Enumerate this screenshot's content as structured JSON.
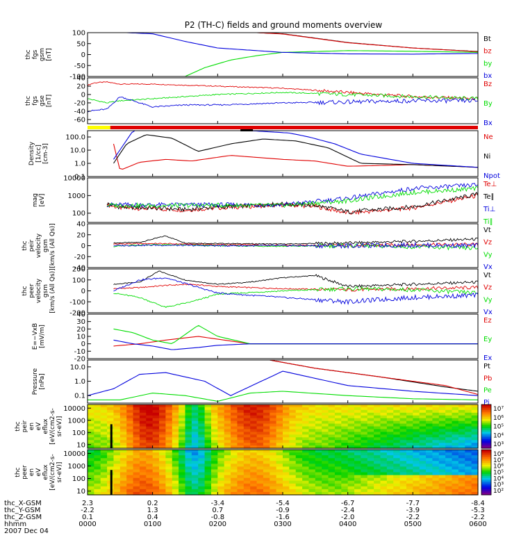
{
  "title": "P2 (TH-C) fields and ground moments overview",
  "colors": {
    "black": "#000000",
    "red": "#e00000",
    "green": "#00dd00",
    "blue": "#0000dd",
    "yellow": "#ffff00"
  },
  "chart_data": [
    {
      "id": "fgs-gsm",
      "type": "line",
      "ylabel": [
        "thc",
        "fgs",
        "gsm",
        "[nT]"
      ],
      "ylim": [
        -100,
        100
      ],
      "yticks": [
        "100",
        "50",
        "0",
        "-50",
        "-100"
      ],
      "series": [
        {
          "name": "Bt",
          "color": "#000000",
          "x": [
            2.6,
            3,
            4,
            5,
            6
          ],
          "y": [
            100,
            95,
            55,
            30,
            14
          ]
        },
        {
          "name": "bz",
          "color": "#e00000",
          "x": [
            2.6,
            3,
            4,
            5,
            6
          ],
          "y": [
            100,
            94,
            54,
            30,
            13
          ]
        },
        {
          "name": "by",
          "color": "#00dd00",
          "x": [
            1.5,
            1.8,
            2.2,
            2.6,
            3,
            4,
            5,
            6
          ],
          "y": [
            -100,
            -60,
            -25,
            -5,
            10,
            18,
            15,
            10
          ]
        },
        {
          "name": "bx",
          "color": "#0000dd",
          "x": [
            0.6,
            1.0,
            1.5,
            2,
            3,
            4,
            5,
            6
          ],
          "y": [
            100,
            95,
            60,
            30,
            10,
            3,
            2,
            5
          ]
        }
      ]
    },
    {
      "id": "fgs-gse",
      "type": "line",
      "ylabel": [
        "thc",
        "fgs",
        "gse",
        "[nT]"
      ],
      "ylim": [
        -70,
        40
      ],
      "yticks": [
        "40",
        "20",
        "0",
        "-20",
        "-40",
        "-60"
      ],
      "series": [
        {
          "name": "Bz",
          "color": "#e00000",
          "x": [
            0,
            0.1,
            0.3,
            0.5,
            1,
            2,
            3,
            4,
            5,
            6
          ],
          "y": [
            22,
            28,
            30,
            25,
            25,
            20,
            15,
            5,
            -5,
            -10
          ]
        },
        {
          "name": "By",
          "color": "#00dd00",
          "x": [
            0,
            0.3,
            0.5,
            1,
            1.5,
            2,
            3,
            4,
            5,
            6
          ],
          "y": [
            -10,
            -20,
            -15,
            -10,
            -5,
            0,
            5,
            0,
            -5,
            -10
          ]
        },
        {
          "name": "Bx",
          "color": "#0000dd",
          "x": [
            0,
            0.3,
            0.5,
            1,
            1.5,
            2,
            3,
            4,
            5,
            6
          ],
          "y": [
            -40,
            -35,
            -5,
            -30,
            -25,
            -25,
            -20,
            -18,
            -15,
            -15
          ]
        }
      ]
    },
    {
      "id": "density",
      "type": "line",
      "scale": "log",
      "ylabel": [
        "Density",
        "[1/cc]",
        "[cm-3]"
      ],
      "ylim": [
        0.1,
        300
      ],
      "yticks": [
        "100.0",
        "10.0",
        "1.0",
        "0.1"
      ],
      "series": [
        {
          "name": "Ne",
          "color": "#e00000",
          "x": [
            0.4,
            0.5,
            0.8,
            1.2,
            1.6,
            2.2,
            3,
            3.5,
            4,
            5,
            6
          ],
          "y": [
            30,
            0.3,
            1.2,
            2,
            1.5,
            4,
            2,
            1.5,
            0.6,
            0.8,
            0.5
          ]
        },
        {
          "name": "Ni",
          "color": "#000000",
          "x": [
            0.4,
            0.6,
            0.9,
            1.3,
            1.7,
            2.2,
            2.7,
            3.2,
            3.7,
            4.2,
            5,
            6
          ],
          "y": [
            1,
            30,
            150,
            80,
            8,
            30,
            70,
            50,
            15,
            1,
            0.8,
            0.5
          ]
        },
        {
          "name": "Npot",
          "color": "#0000dd",
          "x": [
            0.4,
            0.7,
            1.5,
            2.5,
            3.1,
            3.4,
            3.8,
            4.2,
            5,
            6
          ],
          "y": [
            2,
            300,
            300,
            300,
            200,
            100,
            30,
            5,
            1,
            0.5
          ]
        }
      ]
    },
    {
      "id": "temperature",
      "type": "line",
      "scale": "log",
      "ylabel": [
        "mag",
        "[eV]"
      ],
      "ylim": [
        30,
        10000
      ],
      "yticks": [
        "10000",
        "1000",
        "100"
      ],
      "series": [
        {
          "name": "Te⊥",
          "color": "#e00000",
          "x": [
            0.3,
            0.5,
            1,
            1.5,
            2,
            3,
            3.5,
            4,
            5,
            6
          ],
          "y": [
            300,
            200,
            180,
            150,
            200,
            300,
            250,
            100,
            200,
            1000
          ]
        },
        {
          "name": "Te∥",
          "color": "#000000",
          "x": [
            0.3,
            0.5,
            1,
            1.5,
            2,
            3,
            3.5,
            4,
            5,
            6
          ],
          "y": [
            350,
            220,
            200,
            160,
            220,
            330,
            280,
            120,
            230,
            1200
          ]
        },
        {
          "name": "Ti⊥",
          "color": "#0000dd",
          "x": [
            0.3,
            0.5,
            1,
            2,
            3,
            4,
            5,
            6
          ],
          "y": [
            300,
            300,
            300,
            300,
            300,
            700,
            2500,
            4000
          ]
        },
        {
          "name": "Ti∥",
          "color": "#00dd00",
          "x": [
            0.3,
            0.5,
            1,
            2,
            3,
            4,
            5,
            6
          ],
          "y": [
            280,
            280,
            270,
            280,
            280,
            500,
            1500,
            2500
          ]
        }
      ]
    },
    {
      "id": "peir-velocity",
      "type": "line",
      "ylabel": [
        "thc",
        "peir",
        "velocity",
        "gsm",
        "[km/s (All Qs)]"
      ],
      "ylim": [
        -40,
        40
      ],
      "yticks": [
        "40",
        "20",
        "0",
        "-20",
        "-40"
      ],
      "series": [
        {
          "name": "Vt",
          "color": "#000000",
          "x": [
            0.4,
            0.8,
            1.2,
            1.5,
            2,
            3,
            4,
            5,
            6
          ],
          "y": [
            5,
            6,
            18,
            5,
            4,
            3,
            5,
            8,
            12
          ]
        },
        {
          "name": "Vz",
          "color": "#e00000",
          "x": [
            0.4,
            1,
            2,
            3,
            4,
            5,
            6
          ],
          "y": [
            3,
            4,
            2,
            1,
            0,
            2,
            2
          ]
        },
        {
          "name": "Vy",
          "color": "#00dd00",
          "x": [
            0.4,
            1,
            2,
            3,
            4,
            5,
            6
          ],
          "y": [
            -1,
            2,
            0,
            -1,
            0,
            -2,
            -5
          ]
        },
        {
          "name": "Vx",
          "color": "#0000dd",
          "x": [
            0.4,
            1,
            2,
            3,
            4,
            5,
            6
          ],
          "y": [
            0,
            1,
            0,
            0,
            0,
            1,
            0
          ]
        }
      ]
    },
    {
      "id": "peer-velocity",
      "type": "line",
      "ylabel": [
        "thc",
        "peer",
        "velocity",
        "gsm",
        "[km/s (All Qs)]"
      ],
      "ylim": [
        -200,
        200
      ],
      "yticks": [
        "200",
        "100",
        "0",
        "-100",
        "-200"
      ],
      "series": [
        {
          "name": "Vt",
          "color": "#000000",
          "x": [
            0.4,
            0.8,
            1.1,
            1.5,
            2,
            2.5,
            3,
            3.5,
            4,
            5,
            6
          ],
          "y": [
            60,
            80,
            180,
            100,
            60,
            80,
            120,
            140,
            40,
            60,
            80
          ]
        },
        {
          "name": "Vz",
          "color": "#e00000",
          "x": [
            0.4,
            0.8,
            1.2,
            1.6,
            2,
            3,
            4,
            5,
            6
          ],
          "y": [
            20,
            30,
            50,
            60,
            40,
            20,
            10,
            20,
            30
          ]
        },
        {
          "name": "Vy",
          "color": "#00dd00",
          "x": [
            0.4,
            0.8,
            1.2,
            1.6,
            2,
            3,
            4,
            5,
            6
          ],
          "y": [
            -20,
            -60,
            -150,
            -100,
            -30,
            0,
            20,
            10,
            -20
          ]
        },
        {
          "name": "Vx",
          "color": "#0000dd",
          "x": [
            0.4,
            0.8,
            1.2,
            1.6,
            2,
            3,
            4,
            5,
            6
          ],
          "y": [
            0,
            100,
            120,
            50,
            -20,
            -60,
            -100,
            -60,
            -40
          ]
        }
      ]
    },
    {
      "id": "e-field",
      "type": "line",
      "ylabel": [
        "E=−VxB",
        "[mV/m]"
      ],
      "ylim": [
        -20,
        40
      ],
      "yticks": [
        "40",
        "30",
        "20",
        "10",
        "0",
        "-10",
        "-20"
      ],
      "series": [
        {
          "name": "Ez",
          "color": "#e00000",
          "x": [
            0.4,
            0.8,
            1.2,
            1.7,
            2.1,
            2.5,
            3,
            4,
            5,
            6
          ],
          "y": [
            -3,
            0,
            5,
            10,
            5,
            0,
            0,
            0,
            0,
            0
          ]
        },
        {
          "name": "Ey",
          "color": "#00dd00",
          "x": [
            0.4,
            0.7,
            1.0,
            1.3,
            1.7,
            2.0,
            2.5,
            3,
            4,
            5,
            6
          ],
          "y": [
            20,
            15,
            5,
            0,
            25,
            10,
            0,
            0,
            0,
            0,
            0
          ]
        },
        {
          "name": "Ex",
          "color": "#0000dd",
          "x": [
            0.4,
            0.7,
            1.0,
            1.3,
            1.7,
            2.0,
            2.5,
            3,
            4,
            5,
            6
          ],
          "y": [
            5,
            0,
            -3,
            -8,
            -5,
            -2,
            0,
            0,
            0,
            0,
            0
          ]
        }
      ]
    },
    {
      "id": "pressure",
      "type": "line",
      "scale": "log",
      "ylabel": [
        "Pressure",
        "[nPa]"
      ],
      "ylim": [
        0.03,
        30
      ],
      "yticks": [
        "10.0",
        "1.0",
        "0.1"
      ],
      "series": [
        {
          "name": "Pt",
          "color": "#000000",
          "x": [
            2.8,
            3.5,
            4.5,
            5.5,
            6
          ],
          "y": [
            30,
            8,
            2,
            0.4,
            0.2
          ]
        },
        {
          "name": "Pb",
          "color": "#e00000",
          "x": [
            2.8,
            3.5,
            4.5,
            5.5,
            6
          ],
          "y": [
            30,
            8,
            2,
            0.5,
            0.12
          ]
        },
        {
          "name": "Pe",
          "color": "#00dd00",
          "x": [
            0,
            0.5,
            1,
            1.5,
            2,
            2.5,
            3,
            4,
            5,
            6
          ],
          "y": [
            0.05,
            0.05,
            0.15,
            0.1,
            0.04,
            0.15,
            0.2,
            0.1,
            0.06,
            0.05
          ]
        },
        {
          "name": "Pi",
          "color": "#0000dd",
          "x": [
            0,
            0.4,
            0.8,
            1.2,
            1.8,
            2.2,
            3,
            4,
            5,
            6
          ],
          "y": [
            0.1,
            0.3,
            3,
            4,
            1,
            0.1,
            5,
            0.5,
            0.2,
            0.1
          ]
        }
      ]
    },
    {
      "id": "peir-spectrogram",
      "type": "heatmap",
      "ylabel": [
        "thc",
        "peir",
        "en",
        "eV",
        "eflux",
        "[eV/(cm2-s-",
        "sr-eV)]"
      ],
      "yticks": [
        "10000",
        "1000",
        "100",
        "10"
      ],
      "colorbar_ticks": [
        "10⁷",
        "10⁶",
        "10⁵",
        "10⁴",
        "10³"
      ]
    },
    {
      "id": "peer-spectrogram",
      "type": "heatmap",
      "ylabel": [
        "thc",
        "peer",
        "en",
        "eV",
        "eflux",
        "[eV/(cm2-s-",
        "sr-eV)]"
      ],
      "yticks": [
        "10000",
        "1000",
        "100",
        "10"
      ],
      "colorbar_ticks": [
        "10⁸",
        "10⁷",
        "10⁶",
        "10⁵",
        "10⁴",
        "10³",
        "10²"
      ]
    }
  ],
  "bottom_axis": {
    "rows": [
      {
        "label": "thc_X-GSM",
        "values": [
          "2.3",
          "0.2",
          "-3.4",
          "-5.4",
          "-6.7",
          "-7.7",
          "-8.4"
        ]
      },
      {
        "label": "thc_Y-GSM",
        "values": [
          "-2.2",
          "1.3",
          "0.7",
          "-0.9",
          "-2.4",
          "-3.9",
          "-5.3"
        ]
      },
      {
        "label": "thc_Z-GSM",
        "values": [
          "0.1",
          "0.4",
          "-0.8",
          "-1.6",
          "-2.0",
          "-2.2",
          "-2.2"
        ]
      },
      {
        "label": "hhmm",
        "values": [
          "0000",
          "0100",
          "0200",
          "0300",
          "0400",
          "0500",
          "0600"
        ]
      }
    ],
    "date": "2007 Dec 04"
  }
}
